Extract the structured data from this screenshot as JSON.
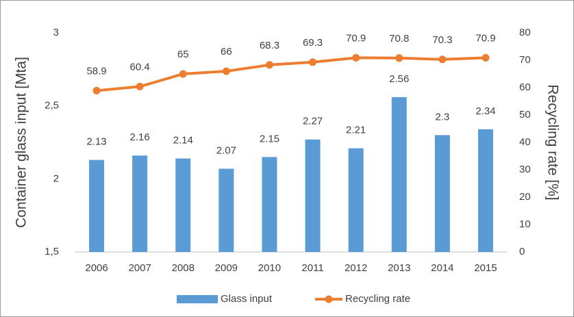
{
  "chart_data": {
    "type": "bar",
    "ylabel": "Container glass input [Mta]",
    "y2label": "Recycling rate [%]",
    "categories": [
      "2006",
      "2007",
      "2008",
      "2009",
      "2010",
      "2011",
      "2012",
      "2013",
      "2014",
      "2015"
    ],
    "series": [
      {
        "name": "Glass input",
        "type": "bar",
        "color": "#5b9bd5",
        "axis": "y",
        "values": [
          2.13,
          2.16,
          2.14,
          2.07,
          2.15,
          2.27,
          2.21,
          2.56,
          2.3,
          2.34
        ]
      },
      {
        "name": "Recycling rate",
        "type": "line",
        "color": "#ed7d31",
        "axis": "y2",
        "values": [
          58.9,
          60.4,
          65,
          66,
          68.3,
          69.3,
          70.9,
          70.8,
          70.3,
          70.9
        ]
      }
    ],
    "ylim": [
      1.5,
      3
    ],
    "yticks": [
      {
        "value": 1.5,
        "label": "1,5"
      },
      2,
      {
        "value": 2.5,
        "label": "2,5"
      },
      3
    ],
    "y2lim": [
      0,
      80
    ],
    "y2ticks": [
      0,
      10,
      20,
      30,
      40,
      50,
      60,
      70,
      80
    ],
    "grid": false,
    "legend": "bottom"
  }
}
